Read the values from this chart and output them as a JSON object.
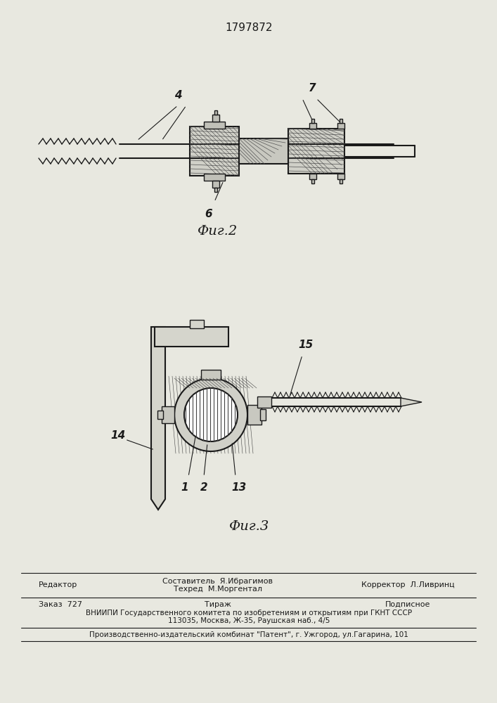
{
  "patent_number": "1797872",
  "fig2_label": "Фиг.2",
  "fig3_label": "Фиг.3",
  "bg_color": "#e8e8e0",
  "line_color": "#1a1a1a",
  "hatch_color": "#1a1a1a",
  "footer_line1_left": "Редактор",
  "footer_line1_center1": "Составитель  Я.Ибрагимов",
  "footer_line1_center2": "Техред  М.Моргентал",
  "footer_line1_right": "Корректор  Л.Ливринц",
  "footer_line2_left": "Заказ  727",
  "footer_line2_center": "Тираж",
  "footer_line2_right": "Подписное",
  "footer_line3": "ВНИИПИ Государственного комитета по изобретениям и открытиям при ГКНТ СССР",
  "footer_line4": "113035, Москва, Ж-35, Раушская наб., 4/5",
  "footer_line5": "Производственно-издательский комбинат \"Патент\", г. Ужгород, ул.Гагарина, 101",
  "label_4": "4",
  "label_6": "6",
  "label_7": "7",
  "label_1": "1",
  "label_2": "2",
  "label_13": "13",
  "label_14": "14",
  "label_15": "15"
}
